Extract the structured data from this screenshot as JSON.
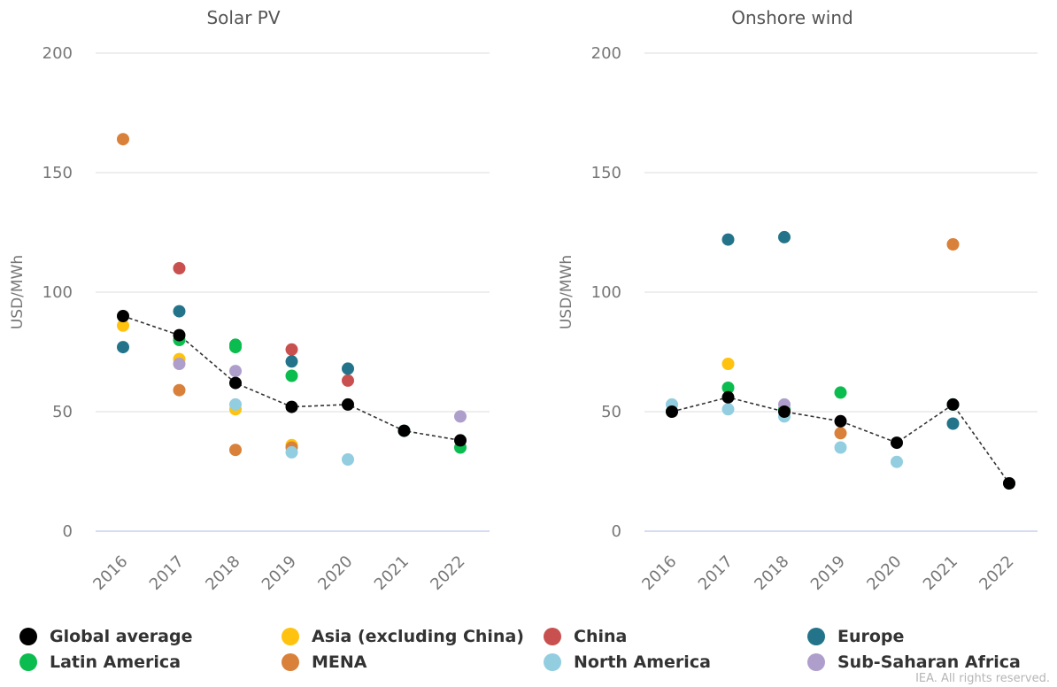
{
  "colors": {
    "Global average": "#000000",
    "Asia (excluding China)": "#FFC20E",
    "China": "#C8504F",
    "Europe": "#23748A",
    "Latin America": "#0BBC4E",
    "MENA": "#D9813A",
    "North America": "#92CDE0",
    "Sub-Saharan Africa": "#AE9ECB"
  },
  "legend": {
    "items": [
      {
        "label": "Global average",
        "color": "#000000"
      },
      {
        "label": "Asia (excluding China)",
        "color": "#FFC20E"
      },
      {
        "label": "China",
        "color": "#C8504F"
      },
      {
        "label": "Europe",
        "color": "#23748A"
      },
      {
        "label": "Latin America",
        "color": "#0BBC4E"
      },
      {
        "label": "MENA",
        "color": "#D9813A"
      },
      {
        "label": "North America",
        "color": "#92CDE0"
      },
      {
        "label": "Sub-Saharan Africa",
        "color": "#AE9ECB"
      }
    ]
  },
  "credit": "IEA. All rights reserved.",
  "chart_data": [
    {
      "type": "scatter",
      "title": "Solar PV",
      "ylabel": "USD/MWh",
      "xlabel": "",
      "categories": [
        "2016",
        "2017",
        "2018",
        "2019",
        "2020",
        "2021",
        "2022"
      ],
      "ylim": [
        0,
        200
      ],
      "yticks": [
        0,
        50,
        100,
        150,
        200
      ],
      "grid": true,
      "line_series": "Global average",
      "series": [
        {
          "name": "Global average",
          "points": [
            [
              "2016",
              90
            ],
            [
              "2017",
              82
            ],
            [
              "2018",
              62
            ],
            [
              "2019",
              52
            ],
            [
              "2020",
              53
            ],
            [
              "2021",
              42
            ],
            [
              "2022",
              38
            ]
          ]
        },
        {
          "name": "Asia (excluding China)",
          "points": [
            [
              "2016",
              86
            ],
            [
              "2017",
              72
            ],
            [
              "2018",
              51
            ],
            [
              "2019",
              36
            ]
          ]
        },
        {
          "name": "China",
          "points": [
            [
              "2017",
              110
            ],
            [
              "2019",
              76
            ],
            [
              "2020",
              63
            ]
          ]
        },
        {
          "name": "Europe",
          "points": [
            [
              "2016",
              77
            ],
            [
              "2017",
              92
            ],
            [
              "2019",
              71
            ],
            [
              "2020",
              68
            ]
          ]
        },
        {
          "name": "Latin America",
          "points": [
            [
              "2017",
              80
            ],
            [
              "2018",
              78
            ],
            [
              "2018",
              77
            ],
            [
              "2019",
              65
            ],
            [
              "2021",
              42
            ],
            [
              "2022",
              35
            ]
          ]
        },
        {
          "name": "MENA",
          "points": [
            [
              "2016",
              164
            ],
            [
              "2017",
              59
            ],
            [
              "2018",
              34
            ],
            [
              "2019",
              35
            ]
          ]
        },
        {
          "name": "North America",
          "points": [
            [
              "2018",
              53
            ],
            [
              "2019",
              33
            ],
            [
              "2020",
              30
            ]
          ]
        },
        {
          "name": "Sub-Saharan Africa",
          "points": [
            [
              "2017",
              70
            ],
            [
              "2018",
              67
            ],
            [
              "2022",
              48
            ]
          ]
        }
      ]
    },
    {
      "type": "scatter",
      "title": "Onshore wind",
      "ylabel": "USD/MWh",
      "xlabel": "",
      "categories": [
        "2016",
        "2017",
        "2018",
        "2019",
        "2020",
        "2021",
        "2022"
      ],
      "ylim": [
        0,
        200
      ],
      "yticks": [
        0,
        50,
        100,
        150,
        200
      ],
      "grid": true,
      "line_series": "Global average",
      "series": [
        {
          "name": "Global average",
          "points": [
            [
              "2016",
              50
            ],
            [
              "2017",
              56
            ],
            [
              "2018",
              50
            ],
            [
              "2019",
              46
            ],
            [
              "2020",
              37
            ],
            [
              "2021",
              53
            ],
            [
              "2022",
              20
            ]
          ]
        },
        {
          "name": "Asia (excluding China)",
          "points": [
            [
              "2017",
              70
            ]
          ]
        },
        {
          "name": "Europe",
          "points": [
            [
              "2017",
              122
            ],
            [
              "2018",
              123
            ],
            [
              "2021",
              45
            ]
          ]
        },
        {
          "name": "Latin America",
          "points": [
            [
              "2016",
              50
            ],
            [
              "2017",
              60
            ],
            [
              "2018",
              51
            ],
            [
              "2019",
              58
            ],
            [
              "2021",
              53
            ],
            [
              "2022",
              20
            ]
          ]
        },
        {
          "name": "MENA",
          "points": [
            [
              "2019",
              41
            ],
            [
              "2021",
              120
            ]
          ]
        },
        {
          "name": "North America",
          "points": [
            [
              "2016",
              53
            ],
            [
              "2017",
              51
            ],
            [
              "2018",
              48
            ],
            [
              "2019",
              35
            ],
            [
              "2020",
              29
            ]
          ]
        },
        {
          "name": "Sub-Saharan Africa",
          "points": [
            [
              "2018",
              53
            ]
          ]
        }
      ]
    }
  ]
}
